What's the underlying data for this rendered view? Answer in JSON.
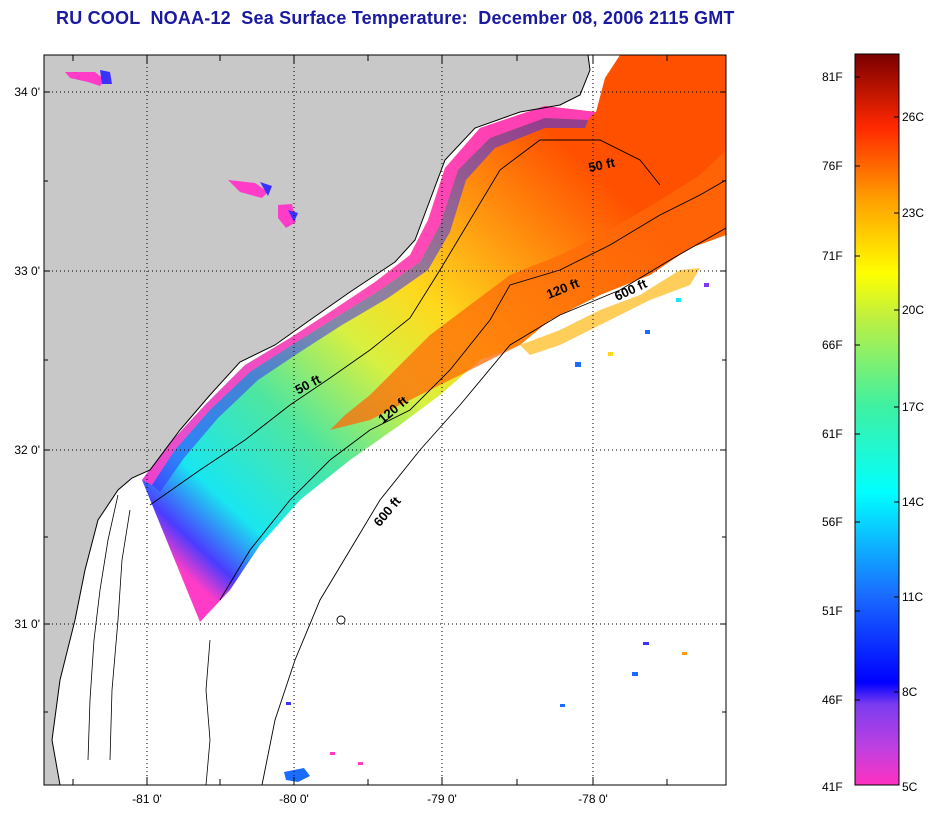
{
  "title": "RU COOL  NOAA-12  Sea Surface Temperature:  December 08, 2006 2115 GMT",
  "latitude_labels": [
    "34 0'",
    "33 0'",
    "32 0'",
    "31 0'"
  ],
  "longitude_labels": [
    "-81 0'",
    "-80 0'",
    "-79 0'",
    "-78 0'"
  ],
  "contour_labels": {
    "c50_north": "50 ft",
    "c50_south": "50 ft",
    "c120_north": "120 ft",
    "c120_south": "120 ft",
    "c600_north": "600 ft",
    "c600_south": "600 ft"
  },
  "colorbar": {
    "fahrenheit": [
      "81F",
      "76F",
      "71F",
      "66F",
      "61F",
      "56F",
      "51F",
      "46F",
      "41F"
    ],
    "celsius": [
      "26C",
      "23C",
      "20C",
      "17C",
      "14C",
      "11C",
      "8C",
      "5C"
    ]
  },
  "colors": {
    "land": "#c8c8c8",
    "title": "#1a1aa0",
    "warm": "#ff5a00",
    "cold": "#ff30c0"
  }
}
